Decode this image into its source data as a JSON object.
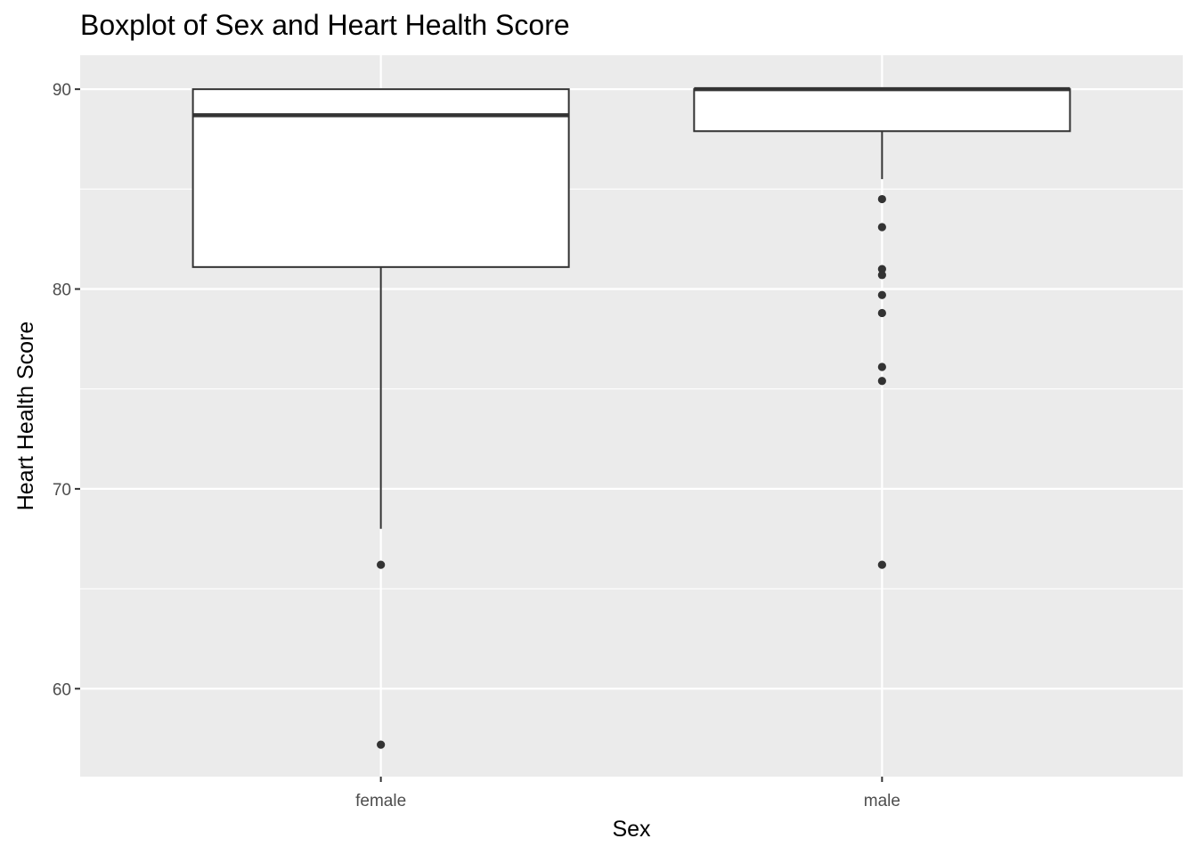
{
  "chart_data": {
    "type": "boxplot",
    "title": "Boxplot of Sex and Heart Health Score",
    "xlabel": "Sex",
    "ylabel": "Heart Health Score",
    "categories": [
      "female",
      "male"
    ],
    "ylim": [
      55.6,
      91.7
    ],
    "y_ticks": [
      60,
      70,
      80,
      90
    ],
    "grid": true,
    "legend": "none",
    "boxes": [
      {
        "category": "female",
        "whisker_low": 68.0,
        "q1": 81.1,
        "median": 88.7,
        "q3": 90.0,
        "whisker_high": 90.0,
        "outliers": [
          66.2,
          57.2
        ]
      },
      {
        "category": "male",
        "whisker_low": 85.5,
        "q1": 87.9,
        "median": 90.0,
        "q3": 90.0,
        "whisker_high": 90.0,
        "outliers": [
          84.5,
          83.1,
          81.0,
          80.7,
          79.7,
          78.8,
          76.1,
          75.4,
          66.2
        ]
      }
    ],
    "colors": {
      "panel_background": "#ebebeb",
      "grid": "#ffffff",
      "box_fill": "#ffffff",
      "box_stroke": "#333333",
      "point": "#333333",
      "tick_text": "#4d4d4d"
    }
  }
}
